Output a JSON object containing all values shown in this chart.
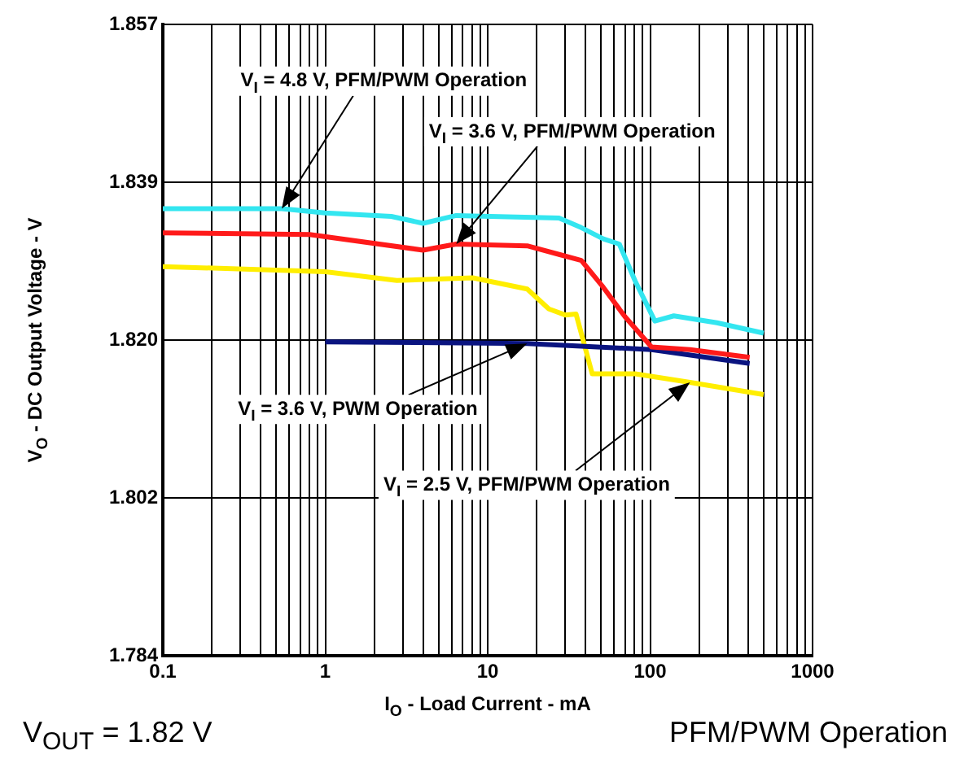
{
  "chart_data": {
    "type": "line",
    "xlabel": "I$_{O}$ - Load Current - mA",
    "ylabel": "V$_{O}$ - DC Output Voltage - V",
    "log": "x",
    "grid": true,
    "legend": false,
    "marker": "none",
    "line_style": "solid",
    "xlim": [
      0.1,
      1000
    ],
    "ylim": [
      1.784,
      1.857
    ],
    "xticks": [
      0.1,
      {
        "value": 0.2,
        "label": null
      },
      {
        "value": 0.3,
        "label": null
      },
      {
        "value": 0.4,
        "label": null
      },
      {
        "value": 0.5,
        "label": null
      },
      {
        "value": 0.6,
        "label": null
      },
      {
        "value": 0.7,
        "label": null
      },
      {
        "value": 0.8,
        "label": null
      },
      {
        "value": 0.9,
        "label": null
      },
      1,
      {
        "value": 2,
        "label": null
      },
      {
        "value": 3,
        "label": null
      },
      {
        "value": 4,
        "label": null
      },
      {
        "value": 5,
        "label": null
      },
      {
        "value": 6,
        "label": null
      },
      {
        "value": 7,
        "label": null
      },
      {
        "value": 8,
        "label": null
      },
      {
        "value": 9,
        "label": null
      },
      10,
      {
        "value": 20,
        "label": null
      },
      {
        "value": 30,
        "label": null
      },
      {
        "value": 40,
        "label": null
      },
      {
        "value": 50,
        "label": null
      },
      {
        "value": 60,
        "label": null
      },
      {
        "value": 70,
        "label": null
      },
      {
        "value": 80,
        "label": null
      },
      {
        "value": 90,
        "label": null
      },
      100,
      {
        "value": 200,
        "label": null
      },
      {
        "value": 300,
        "label": null
      },
      {
        "value": 400,
        "label": null
      },
      {
        "value": 500,
        "label": null
      },
      {
        "value": 600,
        "label": null
      },
      {
        "value": 700,
        "label": null
      },
      {
        "value": 800,
        "label": null
      },
      {
        "value": 900,
        "label": null
      },
      1000
    ],
    "yticks": [
      {
        "value": 1.784,
        "label": "1.784"
      },
      {
        "value": 1.80225,
        "label": "1.802"
      },
      {
        "value": 1.8205,
        "label": "1.820"
      },
      {
        "value": 1.83875,
        "label": "1.839"
      },
      {
        "value": 1.857,
        "label": "1.857"
      }
    ],
    "series": [
      {
        "name": "V$_{I}$ = 4.8 V, PFM/PWM Operation",
        "color": "#33e6f0",
        "x": [
          0.1,
          0.54,
          1.0,
          2.55,
          4.0,
          6.4,
          27.5,
          37.7,
          51.5,
          64.6,
          81,
          107,
          140,
          258,
          500
        ],
        "values": [
          1.8357,
          1.8357,
          1.8352,
          1.8348,
          1.834,
          1.8349,
          1.8346,
          1.8335,
          1.8322,
          1.8316,
          1.8273,
          1.8227,
          1.8233,
          1.8225,
          1.8213
        ]
      },
      {
        "name": "V$_{I}$ = 3.6 V, PFM/PWM Operation",
        "color": "#ff1a1a",
        "x": [
          0.1,
          0.8,
          4.0,
          6.4,
          17.5,
          27.5,
          37.7,
          51.5,
          70,
          102,
          176,
          410
        ],
        "values": [
          1.8329,
          1.8327,
          1.8309,
          1.8316,
          1.8314,
          1.8304,
          1.8297,
          1.8266,
          1.8232,
          1.8197,
          1.8194,
          1.8185
        ]
      },
      {
        "name": "V$_{I}$ = 3.6 V, PWM Operation",
        "color": "#0a1480",
        "x": [
          1,
          17.5,
          102,
          410
        ],
        "values": [
          1.8203,
          1.8201,
          1.8194,
          1.8178
        ]
      },
      {
        "name": "V$_{I}$ = 2.5 V, PFM/PWM Operation",
        "color": "#ffee00",
        "x": [
          0.1,
          1.0,
          2.76,
          8.1,
          17.5,
          23.8,
          30,
          35,
          44,
          81,
          176,
          500
        ],
        "values": [
          1.829,
          1.8284,
          1.8274,
          1.8277,
          1.8264,
          1.8241,
          1.8234,
          1.8235,
          1.8166,
          1.8166,
          1.8156,
          1.8142
        ]
      }
    ],
    "annotations": [
      "V$_{OUT}$ = 1.82 V",
      "PFM/PWM Operation"
    ]
  }
}
